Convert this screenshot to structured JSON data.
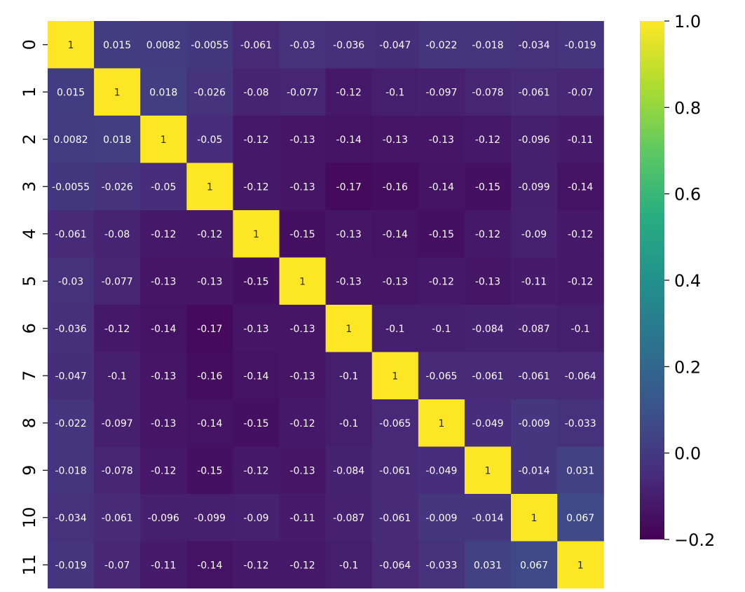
{
  "chart_data": {
    "type": "heatmap",
    "title": "",
    "xlabel": "",
    "ylabel": "",
    "x_categories": [
      "0",
      "1",
      "2",
      "3",
      "4",
      "5",
      "6",
      "7",
      "8",
      "9",
      "10",
      "11"
    ],
    "y_categories": [
      "0",
      "1",
      "2",
      "3",
      "4",
      "5",
      "6",
      "7",
      "8",
      "9",
      "10",
      "11"
    ],
    "values": [
      [
        1,
        0.015,
        0.0082,
        -0.0055,
        -0.061,
        -0.03,
        -0.036,
        -0.047,
        -0.022,
        -0.018,
        -0.034,
        -0.019
      ],
      [
        0.015,
        1,
        0.018,
        -0.026,
        -0.08,
        -0.077,
        -0.12,
        -0.1,
        -0.097,
        -0.078,
        -0.061,
        -0.07
      ],
      [
        0.0082,
        0.018,
        1,
        -0.05,
        -0.12,
        -0.13,
        -0.14,
        -0.13,
        -0.13,
        -0.12,
        -0.096,
        -0.11
      ],
      [
        -0.0055,
        -0.026,
        -0.05,
        1,
        -0.12,
        -0.13,
        -0.17,
        -0.16,
        -0.14,
        -0.15,
        -0.099,
        -0.14
      ],
      [
        -0.061,
        -0.08,
        -0.12,
        -0.12,
        1,
        -0.15,
        -0.13,
        -0.14,
        -0.15,
        -0.12,
        -0.09,
        -0.12
      ],
      [
        -0.03,
        -0.077,
        -0.13,
        -0.13,
        -0.15,
        1,
        -0.13,
        -0.13,
        -0.12,
        -0.13,
        -0.11,
        -0.12
      ],
      [
        -0.036,
        -0.12,
        -0.14,
        -0.17,
        -0.13,
        -0.13,
        1,
        -0.1,
        -0.1,
        -0.084,
        -0.087,
        -0.1
      ],
      [
        -0.047,
        -0.1,
        -0.13,
        -0.16,
        -0.14,
        -0.13,
        -0.1,
        1,
        -0.065,
        -0.061,
        -0.061,
        -0.064
      ],
      [
        -0.022,
        -0.097,
        -0.13,
        -0.14,
        -0.15,
        -0.12,
        -0.1,
        -0.065,
        1,
        -0.049,
        -0.009,
        -0.033
      ],
      [
        -0.018,
        -0.078,
        -0.12,
        -0.15,
        -0.12,
        -0.13,
        -0.084,
        -0.061,
        -0.049,
        1,
        -0.014,
        0.031
      ],
      [
        -0.034,
        -0.061,
        -0.096,
        -0.099,
        -0.09,
        -0.11,
        -0.087,
        -0.061,
        -0.009,
        -0.014,
        1,
        0.067
      ],
      [
        -0.019,
        -0.07,
        -0.11,
        -0.14,
        -0.12,
        -0.12,
        -0.1,
        -0.064,
        -0.033,
        0.031,
        0.067,
        1
      ]
    ],
    "colormap": "viridis",
    "vmin": -0.2,
    "vmax": 1.0,
    "colorbar_ticks": [
      "1.0",
      "0.8",
      "0.6",
      "0.4",
      "0.2",
      "0.0",
      "−0.2"
    ],
    "colorbar_tick_values": [
      1.0,
      0.8,
      0.6,
      0.4,
      0.2,
      0.0,
      -0.2
    ],
    "annotations": true,
    "grid": false,
    "legend": "colorbar-right"
  }
}
